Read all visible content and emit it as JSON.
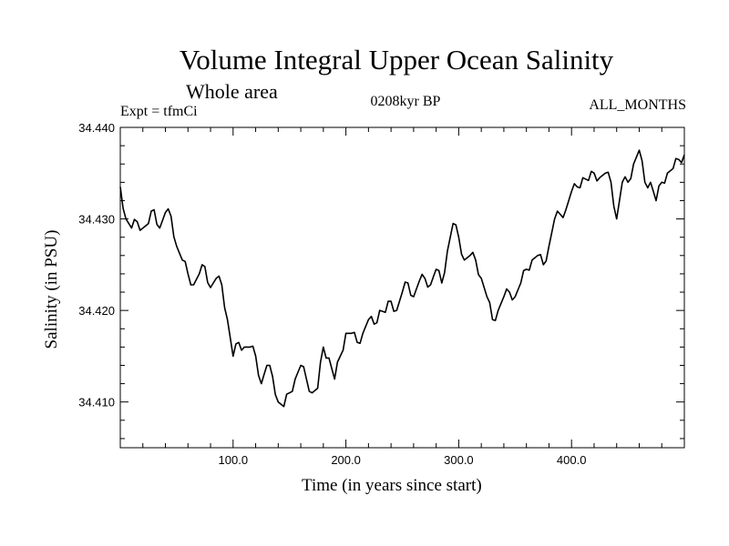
{
  "chart_data": {
    "type": "line",
    "title": "Volume Integral Upper Ocean Salinity",
    "subtitle": "Whole area",
    "annotations": {
      "experiment": "Expt = tfmCi",
      "period": "0208kyr BP",
      "months": "ALL_MONTHS"
    },
    "xlabel": "Time (in years since start)",
    "ylabel": "Salinity (in PSU)",
    "xlim": [
      0,
      500
    ],
    "ylim": [
      34.405,
      34.44
    ],
    "x_ticks": [
      100,
      200,
      300,
      400
    ],
    "x_tick_labels": [
      "100.0",
      "200.0",
      "300.0",
      "400.0"
    ],
    "y_ticks": [
      34.41,
      34.42,
      34.43,
      34.44
    ],
    "y_tick_labels": [
      "34.410",
      "34.420",
      "34.430",
      "34.440"
    ],
    "grid": false,
    "series": [
      {
        "color": "#000000",
        "x": [
          0,
          5,
          10,
          15,
          20,
          25,
          30,
          35,
          40,
          45,
          50,
          55,
          60,
          65,
          70,
          75,
          80,
          85,
          90,
          95,
          100,
          105,
          110,
          115,
          120,
          125,
          130,
          135,
          140,
          145,
          150,
          155,
          160,
          165,
          170,
          175,
          180,
          185,
          190,
          195,
          200,
          205,
          210,
          215,
          220,
          225,
          230,
          235,
          240,
          245,
          250,
          255,
          260,
          265,
          270,
          275,
          280,
          285,
          290,
          295,
          300,
          305,
          310,
          315,
          320,
          325,
          330,
          335,
          340,
          345,
          350,
          355,
          360,
          365,
          370,
          375,
          380,
          385,
          390,
          395,
          400,
          405,
          410,
          415,
          420,
          425,
          430,
          435,
          440,
          445,
          450,
          455,
          460,
          465,
          470,
          475,
          480,
          485,
          490,
          495,
          500
        ],
        "values": [
          34.4335,
          34.43,
          34.429,
          34.4297,
          34.429,
          34.4295,
          34.431,
          34.429,
          34.4307,
          34.4303,
          34.427,
          34.4255,
          34.424,
          34.4228,
          34.424,
          34.4248,
          34.4225,
          34.4235,
          34.4228,
          34.419,
          34.415,
          34.4165,
          34.416,
          34.416,
          34.415,
          34.412,
          34.414,
          34.4128,
          34.41,
          34.4095,
          34.411,
          34.4125,
          34.414,
          34.4125,
          34.411,
          34.4115,
          34.416,
          34.4148,
          34.4125,
          34.415,
          34.4175,
          34.4175,
          34.4165,
          34.4175,
          34.419,
          34.4185,
          34.42,
          34.4198,
          34.421,
          34.42,
          34.422,
          34.423,
          34.4215,
          34.4232,
          34.4235,
          34.4228,
          34.4245,
          34.423,
          34.4265,
          34.4295,
          34.428,
          34.4255,
          34.426,
          34.4255,
          34.4235,
          34.4215,
          34.419,
          34.42,
          34.4215,
          34.422,
          34.4215,
          34.423,
          34.4245,
          34.4255,
          34.426,
          34.425,
          34.427,
          34.43,
          34.4305,
          34.431,
          34.433,
          34.4335,
          34.4345,
          34.4342,
          34.435,
          34.4345,
          34.435,
          34.434,
          34.43,
          34.434,
          34.434,
          34.436,
          34.4375,
          34.434,
          34.434,
          34.432,
          34.434,
          34.435,
          34.4355,
          34.4365,
          34.437
        ]
      }
    ]
  }
}
